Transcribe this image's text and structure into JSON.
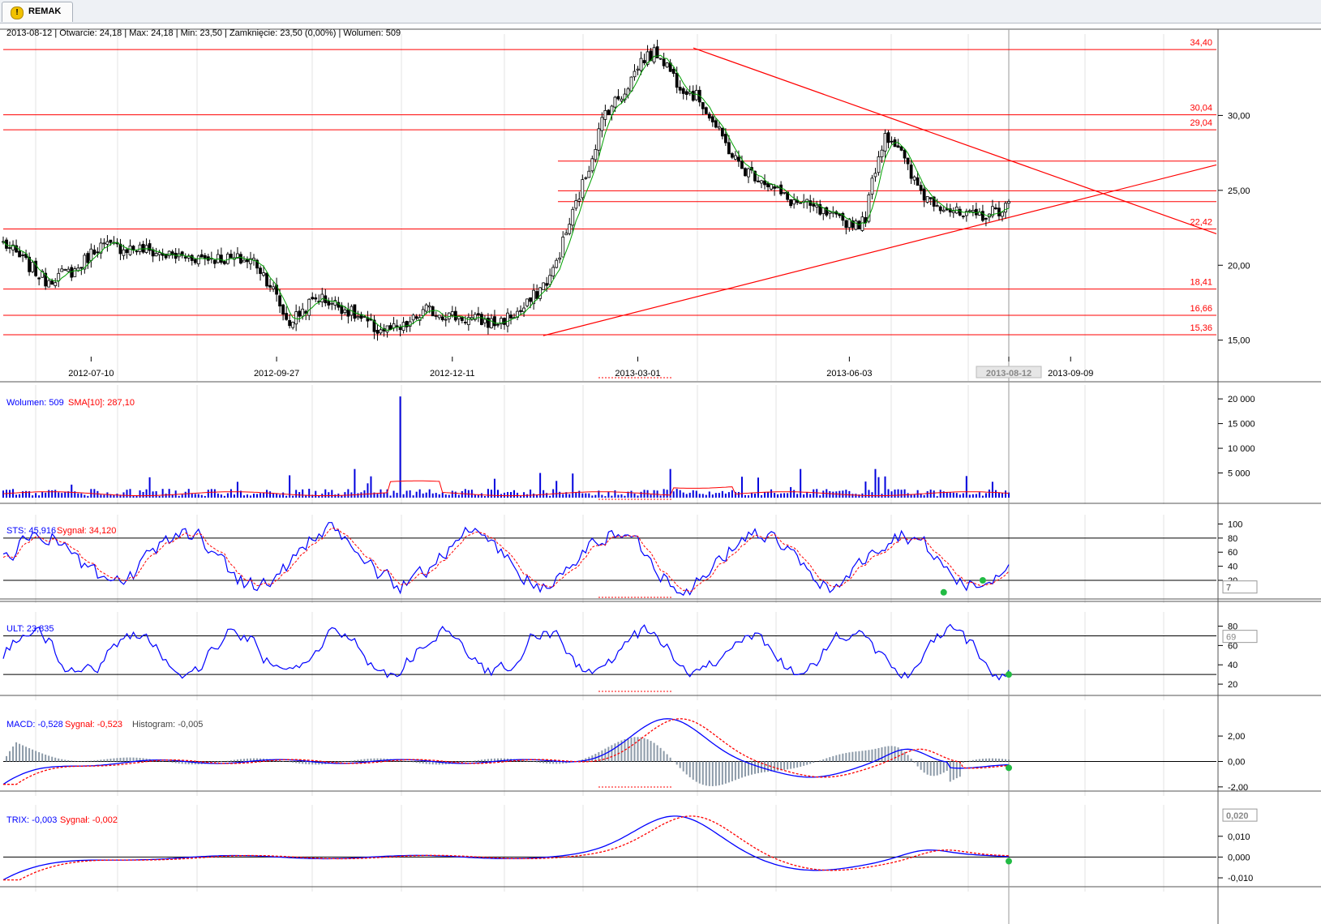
{
  "tab": {
    "label": "REMAK",
    "icon": "warning-icon"
  },
  "header": {
    "text": "2013-08-12 | Otwarcie: 24,18 | Max: 24,18 | Min: 23,50 | Zamknięcie: 23,50 (0,00%)  | Wolumen: 509"
  },
  "colors": {
    "line_red": "#ff0000",
    "candle": "#000000",
    "sma": "#00a000",
    "volume": "#0000dd",
    "blue": "#0000ff",
    "marker": "#22bb44",
    "histogram": "#8c9aa8"
  },
  "x_axis": {
    "labels": [
      "2012-07-10",
      "2012-09-27",
      "2012-12-11",
      "2013-03-01",
      "2013-06-03",
      "2013-08-12",
      "2013-09-09"
    ],
    "highlight": "2013-08-12"
  },
  "chart_data": [
    {
      "type": "candlestick",
      "name": "price",
      "y_ticks": [
        "15,00",
        "20,00",
        "25,00",
        "30,00"
      ],
      "ylim": [
        13.9,
        35.0
      ],
      "levels": [
        {
          "value": 34.4,
          "label": "34,40"
        },
        {
          "value": 30.04,
          "label": "30,04"
        },
        {
          "value": 29.04,
          "label": "29,04"
        },
        {
          "value": 26.95,
          "label": ""
        },
        {
          "value": 24.97,
          "label": ""
        },
        {
          "value": 24.25,
          "label": ""
        },
        {
          "value": 22.42,
          "label": "22,42"
        },
        {
          "value": 18.41,
          "label": "18,41"
        },
        {
          "value": 16.66,
          "label": "16,66"
        },
        {
          "value": 15.36,
          "label": "15,36"
        }
      ],
      "last": {
        "date": "2013-08-12",
        "open": 24.18,
        "high": 24.18,
        "low": 23.5,
        "close": 23.5,
        "volume": 509
      }
    },
    {
      "type": "bar",
      "name": "volume",
      "legend": {
        "value_label": "Wolumen: 509",
        "sma_label": "SMA[10]: 287,10"
      },
      "y_ticks": [
        "5 000",
        "10 000",
        "15 000",
        "20 000"
      ],
      "ylim": [
        0,
        21500
      ],
      "max_value": 20500
    },
    {
      "type": "line",
      "name": "sts",
      "legend": {
        "value_label": "STS: 45,916",
        "signal_label": "Sygnał: 34,120"
      },
      "y_ticks": [
        "20",
        "40",
        "60",
        "80",
        "100"
      ],
      "levels": [
        20,
        80
      ],
      "ylim": [
        -3,
        104
      ],
      "readout": "7"
    },
    {
      "type": "line",
      "name": "ult",
      "legend": {
        "value_label": "ULT: 23,835"
      },
      "y_ticks": [
        "20",
        "40",
        "60",
        "80"
      ],
      "levels": [
        30,
        70
      ],
      "ylim": [
        10,
        88
      ],
      "readout": "69"
    },
    {
      "type": "line",
      "name": "macd",
      "legend": {
        "value_label": "MACD: -0,528",
        "signal_label": "Sygnał: -0,523",
        "histogram_label": "Histogram: -0,005"
      },
      "y_ticks": [
        "-2,00",
        "0,00",
        "2,00"
      ],
      "ylim": [
        -2.2,
        3.6
      ]
    },
    {
      "type": "line",
      "name": "trix",
      "legend": {
        "value_label": "TRIX: -0,003",
        "signal_label": "Sygnał: -0,002"
      },
      "y_ticks": [
        "-0,010",
        "0,000",
        "0,010"
      ],
      "ylim": [
        -0.0135,
        0.022
      ],
      "readout": "0,020"
    }
  ]
}
